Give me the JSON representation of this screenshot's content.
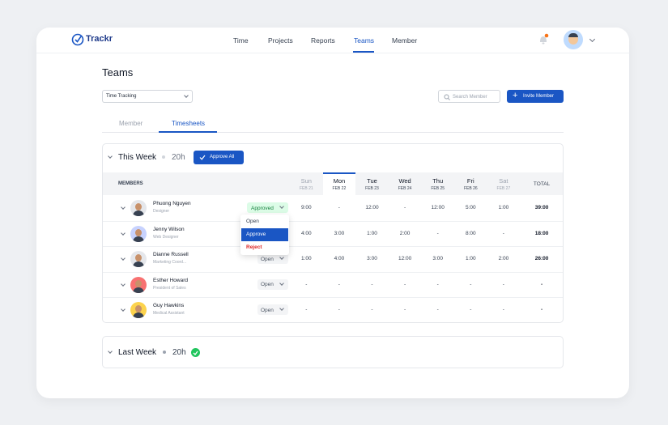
{
  "header": {
    "logo": "Trackr",
    "nav": [
      "Time",
      "Projects",
      "Reports",
      "Teams",
      "Member"
    ]
  },
  "page": {
    "title": "Teams",
    "filter": "Time Tracking",
    "search_placeholder": "Search Member",
    "invite_button": "Invite Member"
  },
  "tabs": [
    "Member",
    "Timesheets"
  ],
  "this_week": {
    "title": "This Week",
    "hours": "20h",
    "approve_button": "Approve All",
    "columns": {
      "members": "MEMBERS",
      "days": [
        {
          "day": "Sun",
          "date": "FEB 21"
        },
        {
          "day": "Mon",
          "date": "FEB 22"
        },
        {
          "day": "Tue",
          "date": "FEB 23"
        },
        {
          "day": "Wed",
          "date": "FEB 24"
        },
        {
          "day": "Thu",
          "date": "FEB 25"
        },
        {
          "day": "Fri",
          "date": "FEB 26"
        },
        {
          "day": "Sat",
          "date": "FEB 27"
        }
      ],
      "total": "TOTAL"
    },
    "rows": [
      {
        "name": "Phuong Nguyen",
        "role": "Designer",
        "status": "Approved",
        "hours": [
          "9:00",
          "-",
          "12:00",
          "-",
          "12:00",
          "5:00",
          "1:00"
        ],
        "total": "39:00"
      },
      {
        "name": "Jenny Wilson",
        "role": "Web Designer",
        "hours": [
          "4:00",
          "3:00",
          "1:00",
          "2:00",
          "-",
          "8:00",
          "-"
        ],
        "total": "18:00"
      },
      {
        "name": "Dianne Russell",
        "role": "Marketing Coord...",
        "status": "Open",
        "hours": [
          "1:00",
          "4:00",
          "3:00",
          "12:00",
          "3:00",
          "1:00",
          "2:00"
        ],
        "total": "26:00"
      },
      {
        "name": "Esther Howard",
        "role": "President of Sales",
        "status": "Open",
        "hours": [
          "-",
          "-",
          "-",
          "-",
          "-",
          "-",
          "-"
        ],
        "total": "-"
      },
      {
        "name": "Guy Hawkins",
        "role": "Medical Assistant",
        "status": "Open",
        "hours": [
          "-",
          "-",
          "-",
          "-",
          "-",
          "-",
          "-"
        ],
        "total": "-"
      }
    ]
  },
  "status_menu": [
    "Open",
    "Approve",
    "Reject"
  ],
  "last_week": {
    "title": "Last Week",
    "hours": "20h"
  }
}
